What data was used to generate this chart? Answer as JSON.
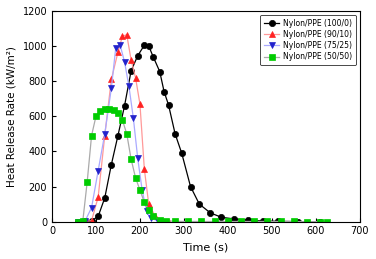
{
  "title": "",
  "xlabel": "Time (s)",
  "ylabel": "Heat Release Rate (kW/m²)",
  "xlim": [
    0,
    700
  ],
  "ylim": [
    0,
    1200
  ],
  "xticks": [
    0,
    100,
    200,
    300,
    400,
    500,
    600,
    700
  ],
  "yticks": [
    0,
    200,
    400,
    600,
    800,
    1000,
    1200
  ],
  "series": [
    {
      "label": "Nylon/PPE (100/0)",
      "line_color": "black",
      "marker_color": "black",
      "marker": "o",
      "markersize": 4.5,
      "linewidth": 0.9,
      "x": [
        60,
        75,
        90,
        105,
        120,
        135,
        150,
        165,
        180,
        195,
        210,
        220,
        230,
        245,
        255,
        265,
        280,
        295,
        315,
        335,
        360,
        385,
        415,
        445,
        480,
        515,
        560,
        610
      ],
      "y": [
        0,
        2,
        5,
        30,
        135,
        325,
        490,
        660,
        860,
        945,
        1005,
        1000,
        940,
        855,
        740,
        665,
        500,
        390,
        200,
        100,
        50,
        25,
        15,
        8,
        4,
        2,
        0,
        0
      ]
    },
    {
      "label": "Nylon/PPE (90/10)",
      "line_color": "#FF9999",
      "marker_color": "#FF2222",
      "marker": "^",
      "markersize": 5,
      "linewidth": 0.9,
      "x": [
        60,
        75,
        90,
        105,
        120,
        135,
        150,
        160,
        170,
        180,
        190,
        200,
        210,
        220,
        235,
        250,
        265
      ],
      "y": [
        0,
        2,
        5,
        140,
        490,
        810,
        965,
        1055,
        1065,
        920,
        820,
        670,
        300,
        100,
        30,
        5,
        0
      ]
    },
    {
      "label": "Nylon/PPE (75/25)",
      "line_color": "#AAAAFF",
      "marker_color": "#2222CC",
      "marker": "v",
      "markersize": 5,
      "linewidth": 0.9,
      "x": [
        60,
        75,
        90,
        105,
        120,
        135,
        145,
        155,
        165,
        175,
        185,
        195,
        205,
        215,
        225,
        240,
        255
      ],
      "y": [
        0,
        2,
        80,
        290,
        500,
        760,
        990,
        1005,
        910,
        770,
        590,
        360,
        180,
        60,
        20,
        5,
        0
      ]
    },
    {
      "label": "Nylon/PPE (50/50)",
      "line_color": "#AAAAAA",
      "marker_color": "#00CC00",
      "marker": "s",
      "markersize": 4.5,
      "linewidth": 0.9,
      "x": [
        60,
        70,
        80,
        90,
        100,
        110,
        120,
        130,
        140,
        150,
        160,
        170,
        180,
        190,
        200,
        210,
        220,
        230,
        245,
        260,
        280,
        310,
        340,
        370,
        400,
        430,
        460,
        490,
        520,
        550,
        580,
        610,
        625
      ],
      "y": [
        0,
        2,
        225,
        490,
        600,
        630,
        640,
        640,
        635,
        620,
        580,
        500,
        355,
        250,
        180,
        110,
        65,
        30,
        10,
        5,
        2,
        1,
        1,
        1,
        1,
        1,
        1,
        1,
        1,
        1,
        0,
        0,
        0
      ]
    }
  ],
  "figsize": [
    3.76,
    2.59
  ],
  "dpi": 100
}
